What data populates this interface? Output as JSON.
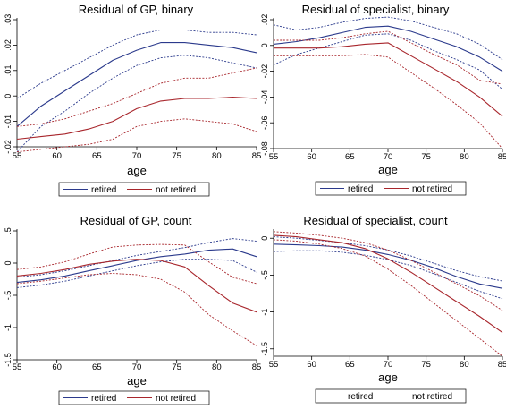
{
  "colors": {
    "retired": "#2b3a8c",
    "not_retired": "#a8262c",
    "axis": "#000000"
  },
  "chart_data": [
    {
      "type": "line",
      "title": "Residual of GP, binary",
      "xlabel": "age",
      "ylabel": "",
      "xlim": [
        55,
        85
      ],
      "ylim": [
        -0.02,
        0.03
      ],
      "xticks": [
        55,
        60,
        65,
        70,
        75,
        80,
        85
      ],
      "yticks": [
        -0.02,
        -0.01,
        0,
        0.01,
        0.02,
        0.03
      ],
      "ytick_labels": [
        "-.02",
        "-.01",
        "0",
        ".01",
        ".02",
        ".03"
      ],
      "legend": [
        "retired",
        "not retired"
      ],
      "x": [
        55,
        58,
        61,
        64,
        67,
        70,
        73,
        76,
        79,
        82,
        85
      ],
      "series": [
        {
          "name": "retired",
          "role": "estimate",
          "values": [
            -0.012,
            -0.004,
            0.002,
            0.008,
            0.014,
            0.018,
            0.021,
            0.021,
            0.02,
            0.019,
            0.017
          ]
        },
        {
          "name": "retired",
          "role": "ci_upper",
          "values": [
            -0.001,
            0.005,
            0.01,
            0.015,
            0.02,
            0.024,
            0.026,
            0.026,
            0.025,
            0.025,
            0.024
          ]
        },
        {
          "name": "retired",
          "role": "ci_lower",
          "values": [
            -0.022,
            -0.012,
            -0.006,
            0.001,
            0.007,
            0.012,
            0.015,
            0.016,
            0.015,
            0.013,
            0.011
          ]
        },
        {
          "name": "not retired",
          "role": "estimate",
          "values": [
            -0.017,
            -0.016,
            -0.015,
            -0.013,
            -0.01,
            -0.005,
            -0.002,
            -0.001,
            -0.001,
            -0.0005,
            -0.001
          ]
        },
        {
          "name": "not retired",
          "role": "ci_upper",
          "values": [
            -0.012,
            -0.011,
            -0.009,
            -0.006,
            -0.003,
            0.001,
            0.005,
            0.007,
            0.007,
            0.009,
            0.011
          ]
        },
        {
          "name": "not retired",
          "role": "ci_lower",
          "values": [
            -0.022,
            -0.021,
            -0.02,
            -0.019,
            -0.017,
            -0.012,
            -0.01,
            -0.009,
            -0.01,
            -0.011,
            -0.014
          ]
        }
      ]
    },
    {
      "type": "line",
      "title": "Residual of specialist, binary",
      "xlabel": "age",
      "ylabel": "",
      "xlim": [
        55,
        85
      ],
      "ylim": [
        -0.08,
        0.02
      ],
      "xticks": [
        55,
        60,
        65,
        70,
        75,
        80,
        85
      ],
      "yticks": [
        -0.08,
        -0.06,
        -0.04,
        -0.02,
        0,
        0.02
      ],
      "ytick_labels": [
        "-.08",
        "-.06",
        "-.04",
        "-.02",
        "0",
        ".02"
      ],
      "legend": [
        "retired",
        "not retired"
      ],
      "x": [
        55,
        58,
        61,
        64,
        67,
        70,
        73,
        76,
        79,
        82,
        85
      ],
      "series": [
        {
          "name": "retired",
          "role": "estimate",
          "values": [
            0.001,
            0.003,
            0.006,
            0.01,
            0.014,
            0.015,
            0.011,
            0.005,
            -0.001,
            -0.009,
            -0.02
          ]
        },
        {
          "name": "retired",
          "role": "ci_upper",
          "values": [
            0.016,
            0.012,
            0.014,
            0.018,
            0.021,
            0.022,
            0.019,
            0.014,
            0.009,
            0.001,
            -0.011
          ]
        },
        {
          "name": "retired",
          "role": "ci_lower",
          "values": [
            -0.015,
            -0.007,
            -0.002,
            0.003,
            0.008,
            0.009,
            0.004,
            -0.004,
            -0.011,
            -0.019,
            -0.034
          ]
        },
        {
          "name": "not retired",
          "role": "estimate",
          "values": [
            -0.002,
            -0.002,
            -0.002,
            -0.001,
            0.001,
            0.002,
            -0.008,
            -0.018,
            -0.028,
            -0.04,
            -0.055
          ]
        },
        {
          "name": "not retired",
          "role": "ci_upper",
          "values": [
            0.004,
            0.004,
            0.004,
            0.006,
            0.009,
            0.011,
            0.002,
            -0.007,
            -0.015,
            -0.027,
            -0.03
          ]
        },
        {
          "name": "not retired",
          "role": "ci_lower",
          "values": [
            -0.008,
            -0.008,
            -0.008,
            -0.008,
            -0.007,
            -0.009,
            -0.021,
            -0.033,
            -0.046,
            -0.06,
            -0.08
          ]
        }
      ]
    },
    {
      "type": "line",
      "title": "Residual of GP, count",
      "xlabel": "age",
      "ylabel": "",
      "xlim": [
        55,
        85
      ],
      "ylim": [
        -1.5,
        0.5
      ],
      "xticks": [
        55,
        60,
        65,
        70,
        75,
        80,
        85
      ],
      "yticks": [
        -1.5,
        -1,
        -0.5,
        0,
        0.5
      ],
      "ytick_labels": [
        "-1.5",
        "-1",
        "-.5",
        "0",
        ".5"
      ],
      "legend": [
        "retired",
        "not retired"
      ],
      "x": [
        55,
        58,
        61,
        64,
        67,
        70,
        73,
        76,
        79,
        82,
        85
      ],
      "series": [
        {
          "name": "retired",
          "role": "estimate",
          "values": [
            -0.3,
            -0.26,
            -0.2,
            -0.12,
            -0.04,
            0.04,
            0.1,
            0.14,
            0.2,
            0.22,
            0.1
          ]
        },
        {
          "name": "retired",
          "role": "ci_upper",
          "values": [
            -0.22,
            -0.18,
            -0.12,
            -0.04,
            0.04,
            0.12,
            0.18,
            0.24,
            0.32,
            0.38,
            0.34
          ]
        },
        {
          "name": "retired",
          "role": "ci_lower",
          "values": [
            -0.38,
            -0.34,
            -0.28,
            -0.2,
            -0.12,
            -0.04,
            0.02,
            0.06,
            0.06,
            0.04,
            -0.14
          ]
        },
        {
          "name": "not retired",
          "role": "estimate",
          "values": [
            -0.2,
            -0.16,
            -0.1,
            -0.02,
            0.03,
            0.06,
            0.04,
            -0.06,
            -0.35,
            -0.62,
            -0.76
          ]
        },
        {
          "name": "not retired",
          "role": "ci_upper",
          "values": [
            -0.1,
            -0.06,
            0.02,
            0.14,
            0.25,
            0.28,
            0.29,
            0.28,
            0.02,
            -0.22,
            -0.32
          ]
        },
        {
          "name": "not retired",
          "role": "ci_lower",
          "values": [
            -0.32,
            -0.28,
            -0.23,
            -0.18,
            -0.16,
            -0.18,
            -0.25,
            -0.45,
            -0.8,
            -1.05,
            -1.28
          ]
        }
      ]
    },
    {
      "type": "line",
      "title": "Residual of specialist, count",
      "xlabel": "age",
      "ylabel": "",
      "xlim": [
        55,
        85
      ],
      "ylim": [
        -1.6,
        0.1
      ],
      "xticks": [
        55,
        60,
        65,
        70,
        75,
        80,
        85
      ],
      "yticks": [
        -1.5,
        -1,
        -0.5,
        0
      ],
      "ytick_labels": [
        "-1.5",
        "-1",
        "-.5",
        "0"
      ],
      "legend": [
        "retired",
        "not retired"
      ],
      "x": [
        55,
        58,
        61,
        64,
        67,
        70,
        73,
        76,
        79,
        82,
        85
      ],
      "series": [
        {
          "name": "retired",
          "role": "estimate",
          "values": [
            -0.08,
            -0.09,
            -0.1,
            -0.12,
            -0.16,
            -0.22,
            -0.3,
            -0.4,
            -0.52,
            -0.62,
            -0.68
          ]
        },
        {
          "name": "retired",
          "role": "ci_upper",
          "values": [
            0.02,
            0.0,
            -0.03,
            -0.06,
            -0.1,
            -0.16,
            -0.24,
            -0.34,
            -0.44,
            -0.52,
            -0.58
          ]
        },
        {
          "name": "retired",
          "role": "ci_lower",
          "values": [
            -0.18,
            -0.17,
            -0.17,
            -0.19,
            -0.23,
            -0.29,
            -0.37,
            -0.48,
            -0.6,
            -0.72,
            -0.82
          ]
        },
        {
          "name": "not retired",
          "role": "estimate",
          "values": [
            0.04,
            0.02,
            -0.02,
            -0.06,
            -0.14,
            -0.28,
            -0.46,
            -0.66,
            -0.86,
            -1.06,
            -1.28
          ]
        },
        {
          "name": "not retired",
          "role": "ci_upper",
          "values": [
            0.09,
            0.07,
            0.04,
            0.0,
            -0.06,
            -0.16,
            -0.3,
            -0.46,
            -0.62,
            -0.78,
            -0.98
          ]
        },
        {
          "name": "not retired",
          "role": "ci_lower",
          "values": [
            -0.02,
            -0.04,
            -0.08,
            -0.14,
            -0.24,
            -0.42,
            -0.64,
            -0.88,
            -1.12,
            -1.36,
            -1.6
          ]
        }
      ]
    }
  ]
}
